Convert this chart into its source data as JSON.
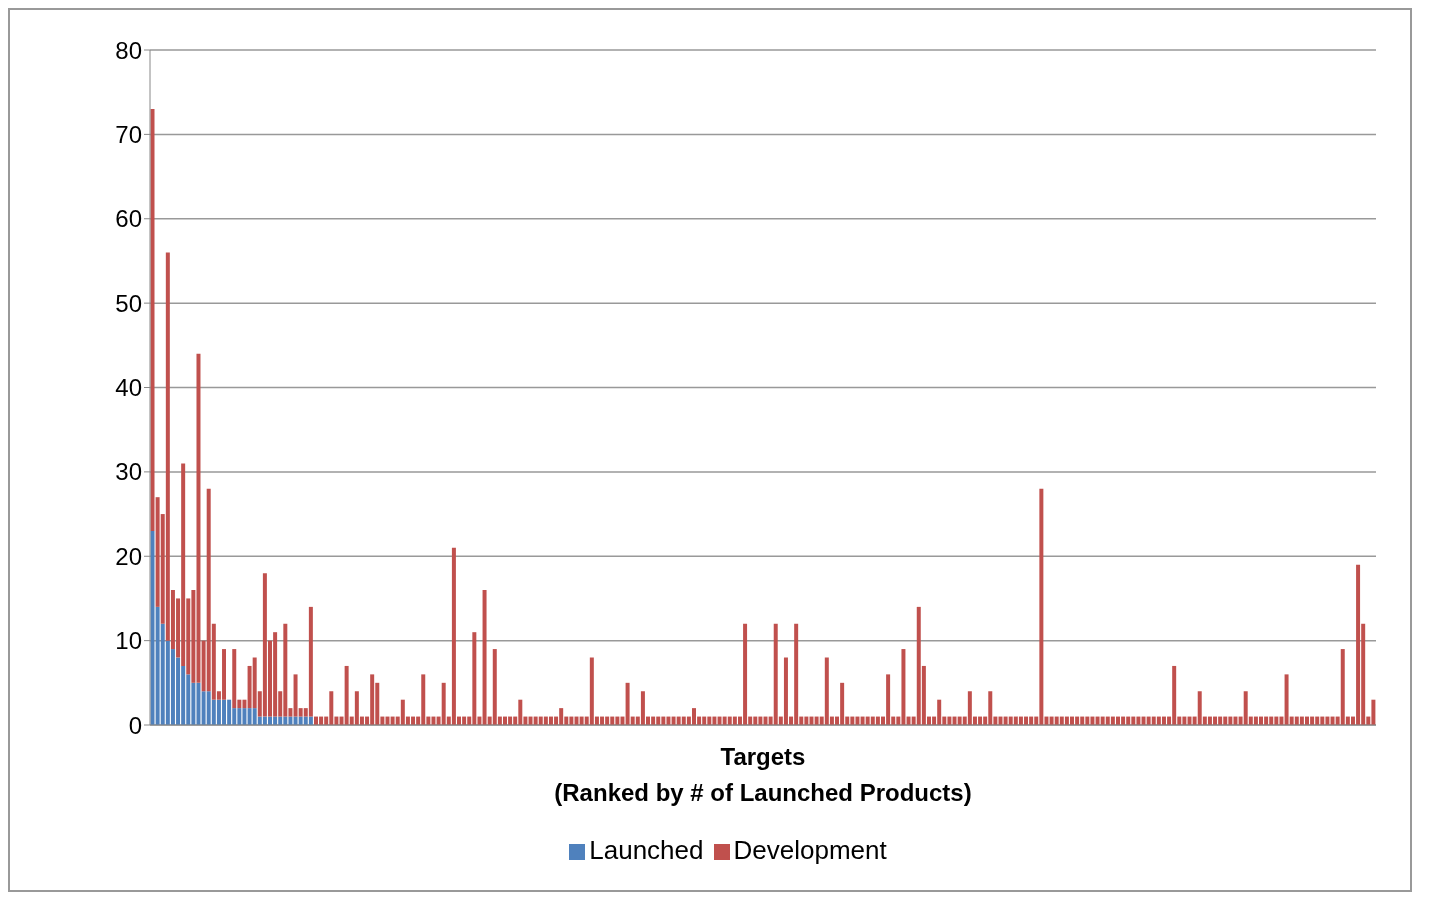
{
  "chart_data": {
    "type": "bar",
    "stacked": true,
    "xlabel": "Targets\n(Ranked by # of Launched Products)",
    "categories": [
      null,
      null,
      null,
      null,
      null,
      null,
      null,
      null,
      null,
      null,
      null,
      null,
      null,
      null,
      null,
      null,
      null,
      null,
      null,
      null,
      null,
      null,
      null,
      null,
      null,
      null,
      null,
      null,
      null,
      null,
      null,
      null,
      null,
      null,
      null,
      null,
      null,
      null,
      null,
      null,
      null,
      null,
      null,
      null,
      null,
      null,
      null,
      null,
      null,
      null,
      null,
      null,
      null,
      null,
      null,
      null,
      null,
      null,
      null,
      null,
      null,
      null,
      null,
      null,
      null,
      null,
      null,
      null,
      null,
      null,
      null,
      null,
      null,
      null,
      null,
      null,
      null,
      null,
      null,
      null,
      null,
      null,
      null,
      null,
      null,
      null,
      null,
      null,
      null,
      null,
      null,
      null,
      null,
      null,
      null,
      null,
      null,
      null,
      null,
      null,
      null,
      null,
      null,
      null,
      null,
      null,
      null,
      null,
      null,
      null,
      null,
      null,
      null,
      null,
      null,
      null,
      null,
      null,
      null,
      null,
      null,
      null,
      null,
      null,
      null,
      null,
      null,
      null,
      null,
      null,
      null,
      null,
      null,
      null,
      null,
      null,
      null,
      null,
      null,
      null,
      null,
      null,
      null,
      null,
      null,
      null,
      null,
      null,
      null,
      null,
      null,
      null,
      null,
      null,
      null,
      null,
      null,
      null,
      null,
      null,
      null,
      null,
      null,
      null,
      null,
      null,
      null,
      null,
      null,
      null,
      null,
      null,
      null,
      null,
      null,
      null,
      null,
      null,
      null,
      null,
      null,
      null,
      null,
      null,
      null,
      null,
      null,
      null,
      null,
      null,
      null,
      null,
      null,
      null,
      null,
      null,
      null,
      null,
      null,
      null,
      null,
      null,
      null,
      null,
      null,
      null,
      null,
      null,
      null,
      null,
      null,
      null,
      null,
      null,
      null,
      null,
      null,
      null,
      null,
      null,
      null,
      null,
      null,
      null,
      null,
      null,
      null,
      null,
      null,
      null,
      null,
      null,
      null,
      null,
      null,
      null,
      null,
      null,
      null,
      null
    ],
    "series": [
      {
        "name": "Launched",
        "color": "#4f81bd",
        "values": [
          23,
          14,
          12,
          10,
          9,
          8,
          7,
          6,
          5,
          5,
          4,
          4,
          3,
          3,
          3,
          3,
          2,
          2,
          2,
          2,
          2,
          1,
          1,
          1,
          1,
          1,
          1,
          1,
          1,
          1,
          1,
          1,
          0,
          0,
          0,
          0,
          0,
          0,
          0,
          0,
          0,
          0,
          0,
          0,
          0,
          0,
          0,
          0,
          0,
          0,
          0,
          0,
          0,
          0,
          0,
          0,
          0,
          0,
          0,
          0,
          0,
          0,
          0,
          0,
          0,
          0,
          0,
          0,
          0,
          0,
          0,
          0,
          0,
          0,
          0,
          0,
          0,
          0,
          0,
          0,
          0,
          0,
          0,
          0,
          0,
          0,
          0,
          0,
          0,
          0,
          0,
          0,
          0,
          0,
          0,
          0,
          0,
          0,
          0,
          0,
          0,
          0,
          0,
          0,
          0,
          0,
          0,
          0,
          0,
          0,
          0,
          0,
          0,
          0,
          0,
          0,
          0,
          0,
          0,
          0,
          0,
          0,
          0,
          0,
          0,
          0,
          0,
          0,
          0,
          0,
          0,
          0,
          0,
          0,
          0,
          0,
          0,
          0,
          0,
          0,
          0,
          0,
          0,
          0,
          0,
          0,
          0,
          0,
          0,
          0,
          0,
          0,
          0,
          0,
          0,
          0,
          0,
          0,
          0,
          0,
          0,
          0,
          0,
          0,
          0,
          0,
          0,
          0,
          0,
          0,
          0,
          0,
          0,
          0,
          0,
          0,
          0,
          0,
          0,
          0,
          0,
          0,
          0,
          0,
          0,
          0,
          0,
          0,
          0,
          0,
          0,
          0,
          0,
          0,
          0,
          0,
          0,
          0,
          0,
          0,
          0,
          0,
          0,
          0,
          0,
          0,
          0,
          0,
          0,
          0,
          0,
          0,
          0,
          0,
          0,
          0,
          0,
          0,
          0,
          0,
          0,
          0,
          0,
          0,
          0,
          0,
          0,
          0,
          0,
          0,
          0,
          0,
          0,
          0,
          0,
          0,
          0,
          0,
          0,
          0
        ]
      },
      {
        "name": "Development",
        "color": "#c0504d",
        "values": [
          50,
          13,
          13,
          46,
          7,
          7,
          24,
          9,
          11,
          39,
          6,
          24,
          9,
          1,
          6,
          0,
          7,
          1,
          1,
          5,
          6,
          3,
          17,
          9,
          10,
          3,
          11,
          1,
          5,
          1,
          1,
          13,
          1,
          1,
          1,
          4,
          1,
          1,
          7,
          1,
          4,
          1,
          1,
          6,
          5,
          1,
          1,
          1,
          1,
          3,
          1,
          1,
          1,
          6,
          1,
          1,
          1,
          5,
          1,
          21,
          1,
          1,
          1,
          11,
          1,
          16,
          1,
          9,
          1,
          1,
          1,
          1,
          3,
          1,
          1,
          1,
          1,
          1,
          1,
          1,
          2,
          1,
          1,
          1,
          1,
          1,
          8,
          1,
          1,
          1,
          1,
          1,
          1,
          5,
          1,
          1,
          4,
          1,
          1,
          1,
          1,
          1,
          1,
          1,
          1,
          1,
          2,
          1,
          1,
          1,
          1,
          1,
          1,
          1,
          1,
          1,
          12,
          1,
          1,
          1,
          1,
          1,
          12,
          1,
          8,
          1,
          12,
          1,
          1,
          1,
          1,
          1,
          8,
          1,
          1,
          5,
          1,
          1,
          1,
          1,
          1,
          1,
          1,
          1,
          6,
          1,
          1,
          9,
          1,
          1,
          14,
          7,
          1,
          1,
          3,
          1,
          1,
          1,
          1,
          1,
          4,
          1,
          1,
          1,
          4,
          1,
          1,
          1,
          1,
          1,
          1,
          1,
          1,
          1,
          28,
          1,
          1,
          1,
          1,
          1,
          1,
          1,
          1,
          1,
          1,
          1,
          1,
          1,
          1,
          1,
          1,
          1,
          1,
          1,
          1,
          1,
          1,
          1,
          1,
          1,
          7,
          1,
          1,
          1,
          1,
          4,
          1,
          1,
          1,
          1,
          1,
          1,
          1,
          1,
          4,
          1,
          1,
          1,
          1,
          1,
          1,
          1,
          6,
          1,
          1,
          1,
          1,
          1,
          1,
          1,
          1,
          1,
          1,
          9,
          1,
          1,
          19,
          12,
          1,
          3
        ]
      }
    ],
    "ylim": [
      0,
      80
    ],
    "yticks": [
      0,
      10,
      20,
      30,
      40,
      50,
      60,
      70,
      80
    ],
    "grid": "y",
    "legend": "bottom"
  }
}
